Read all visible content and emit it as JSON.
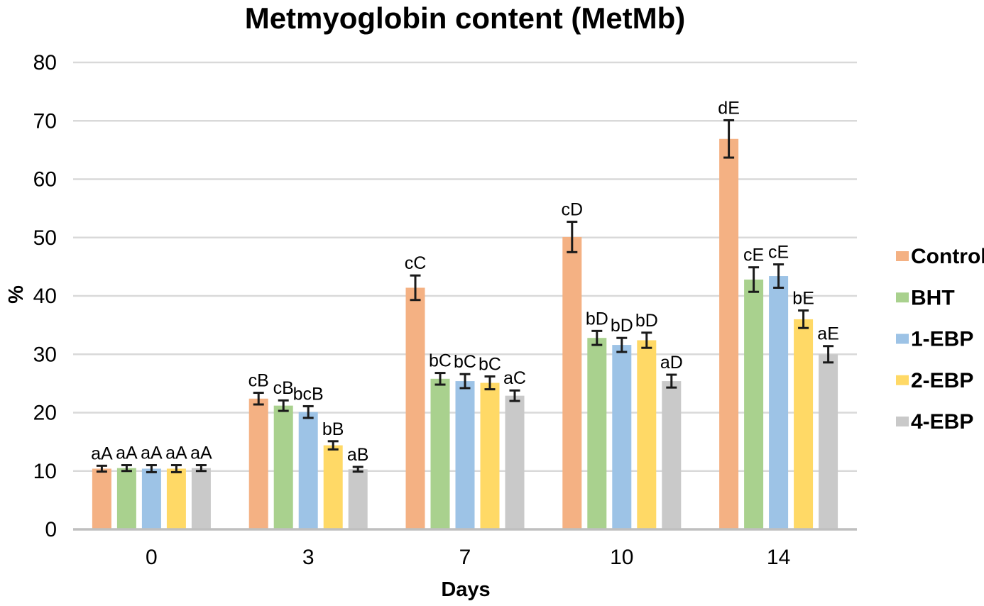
{
  "title": "Metmyoglobin content (MetMb)",
  "chart_data": {
    "type": "bar",
    "title": "Metmyoglobin content (MetMb)",
    "xlabel": "Days",
    "ylabel": "%",
    "ylim": [
      0,
      80
    ],
    "yticks": [
      0,
      10,
      20,
      30,
      40,
      50,
      60,
      70,
      80
    ],
    "grid": true,
    "legend_position": "right",
    "categories": [
      "0",
      "3",
      "7",
      "10",
      "14"
    ],
    "series": [
      {
        "name": "Control",
        "color": "#F4B183",
        "values": [
          10.4,
          22.4,
          41.4,
          50.1,
          66.9
        ],
        "errors": [
          0.5,
          1.0,
          2.1,
          2.6,
          3.2
        ],
        "labels": [
          "aA",
          "cB",
          "cC",
          "cD",
          "dE"
        ]
      },
      {
        "name": "BHT",
        "color": "#A9D18E",
        "values": [
          10.5,
          21.2,
          25.8,
          32.8,
          42.8
        ],
        "errors": [
          0.5,
          0.9,
          1.0,
          1.2,
          2.1
        ],
        "labels": [
          "aA",
          "cB",
          "bC",
          "bD",
          "cE"
        ]
      },
      {
        "name": "1-EBP",
        "color": "#9DC3E6",
        "values": [
          10.4,
          20.1,
          25.4,
          31.6,
          43.4
        ],
        "errors": [
          0.6,
          1.0,
          1.2,
          1.2,
          2.0
        ],
        "labels": [
          "aA",
          "bcB",
          "bC",
          "bD",
          "cE"
        ]
      },
      {
        "name": "2-EBP",
        "color": "#FFD966",
        "values": [
          10.4,
          14.4,
          25.1,
          32.4,
          36.0
        ],
        "errors": [
          0.6,
          0.7,
          1.1,
          1.3,
          1.5
        ],
        "labels": [
          "aA",
          "bB",
          "bC",
          "bD",
          "bE"
        ]
      },
      {
        "name": "4-EBP",
        "color": "#C9C9C9",
        "values": [
          10.5,
          10.3,
          22.9,
          25.4,
          30.0
        ],
        "errors": [
          0.5,
          0.4,
          0.9,
          1.1,
          1.4
        ],
        "labels": [
          "aA",
          "aB",
          "aC",
          "aD",
          "aE"
        ]
      }
    ],
    "error_bar_color": "#1a1a1a",
    "gridline_color": "#D9D9D9",
    "axis_line_color": "#BFBFBF",
    "text_color": "#000000"
  }
}
